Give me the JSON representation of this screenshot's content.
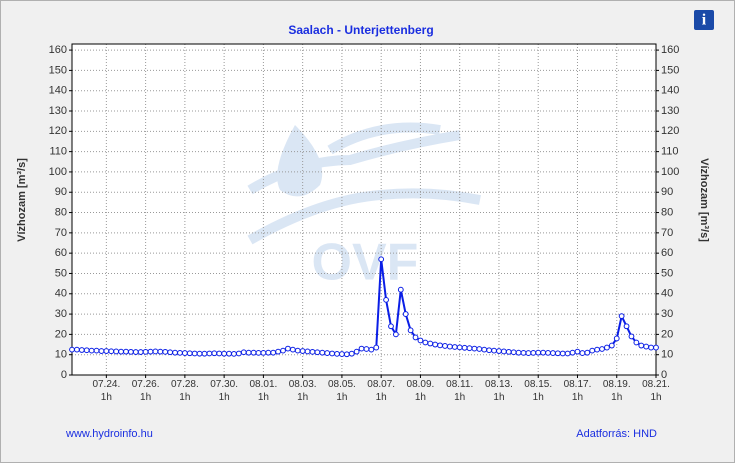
{
  "chart_data": {
    "type": "line",
    "title": "Saalach - Unterjettenberg",
    "ylabel": "Vízhozam [m³/s]",
    "y2label": "Vízhozam [m³/s]",
    "watermark": "OVF",
    "info_icon": "i",
    "footer_left": "www.hydroinfo.hu",
    "footer_right": "Adatforrás: HND",
    "color": "#0a1ee6",
    "marker_fill": "#ffffff",
    "grid": true,
    "ylim": [
      0,
      163
    ],
    "yticks": [
      0,
      10,
      20,
      30,
      40,
      50,
      60,
      70,
      80,
      90,
      100,
      110,
      120,
      130,
      140,
      150,
      160
    ],
    "y2lim": [
      0,
      163
    ],
    "y2ticks": [
      0,
      10,
      20,
      30,
      40,
      50,
      60,
      70,
      80,
      90,
      100,
      110,
      120,
      130,
      140,
      150,
      160
    ],
    "categories": [
      null,
      null,
      null,
      null,
      null,
      null,
      null,
      "07.24.\n1h",
      null,
      null,
      null,
      null,
      null,
      null,
      null,
      "07.26.\n1h",
      null,
      null,
      null,
      null,
      null,
      null,
      null,
      "07.28.\n1h",
      null,
      null,
      null,
      null,
      null,
      null,
      null,
      "07.30.\n1h",
      null,
      null,
      null,
      null,
      null,
      null,
      null,
      "08.01.\n1h",
      null,
      null,
      null,
      null,
      null,
      null,
      null,
      "08.03.\n1h",
      null,
      null,
      null,
      null,
      null,
      null,
      null,
      "08.05.\n1h",
      null,
      null,
      null,
      null,
      null,
      null,
      null,
      "08.07.\n1h",
      null,
      null,
      null,
      null,
      null,
      null,
      null,
      "08.09.\n1h",
      null,
      null,
      null,
      null,
      null,
      null,
      null,
      "08.11.\n1h",
      null,
      null,
      null,
      null,
      null,
      null,
      null,
      "08.13.\n1h",
      null,
      null,
      null,
      null,
      null,
      null,
      null,
      "08.15.\n1h",
      null,
      null,
      null,
      null,
      null,
      null,
      null,
      "08.17.\n1h",
      null,
      null,
      null,
      null,
      null,
      null,
      null,
      "08.19.\n1h",
      null,
      null,
      null,
      null,
      null,
      null,
      null,
      "08.21.\n1h"
    ],
    "values": [
      12.5,
      12.5,
      12.3,
      12.2,
      12,
      12,
      11.8,
      11.8,
      11.7,
      11.6,
      11.5,
      11.5,
      11.4,
      11.3,
      11.3,
      11.4,
      11.5,
      11.6,
      11.5,
      11.4,
      11.2,
      11,
      10.9,
      10.8,
      10.7,
      10.6,
      10.5,
      10.5,
      10.6,
      10.7,
      10.6,
      10.5,
      10.5,
      10.4,
      10.6,
      11.2,
      11,
      11,
      10.9,
      10.9,
      11,
      11,
      11.5,
      12,
      13,
      12.5,
      12,
      11.8,
      11.6,
      11.4,
      11.2,
      11,
      10.8,
      10.6,
      10.4,
      10.3,
      10.2,
      10.5,
      11.5,
      13,
      12.8,
      12.5,
      13.5,
      57,
      37,
      24,
      20,
      42,
      30,
      22,
      18.5,
      17,
      16,
      15.5,
      15,
      14.6,
      14.3,
      14,
      13.8,
      13.6,
      13.4,
      13.2,
      13,
      12.8,
      12.5,
      12.2,
      12,
      11.8,
      11.6,
      11.4,
      11.2,
      11,
      10.9,
      10.8,
      10.9,
      11,
      11,
      10.9,
      10.8,
      10.7,
      10.6,
      10.6,
      11,
      11.5,
      10.8,
      11,
      12,
      12.5,
      12.8,
      13.5,
      14.5,
      18,
      29,
      24,
      19,
      16,
      14.5,
      14,
      13.5,
      13.5
    ]
  }
}
